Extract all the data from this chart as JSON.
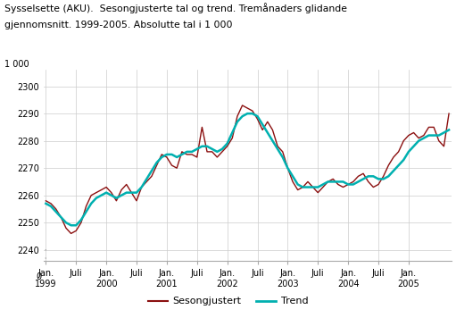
{
  "title_line1": "Sysselsette (AKU).  Sesongjusterte tal og trend. Tremånaders glidande",
  "title_line2": "gjennomsnitt. 1999-2005. Absolutte tal i 1 000",
  "ylabel_top": "1 000",
  "yticks": [
    2240,
    2250,
    2260,
    2270,
    2280,
    2290,
    2300
  ],
  "ymin": 2236,
  "ymax": 2306,
  "xtick_labels": [
    "Jan.\n1999",
    "Juli",
    "Jan.\n2000",
    "Juli",
    "Jan.\n2001",
    "Juli",
    "Jan.\n2002",
    "Juli",
    "Jan.\n2003",
    "Juli",
    "Jan.\n2004",
    "Juli",
    "Jan.\n2005"
  ],
  "legend_sesongjustert": "Sesongjustert",
  "legend_trend": "Trend",
  "color_sesongjustert": "#8B1010",
  "color_trend": "#00B0B0",
  "background_color": "#ffffff",
  "sesongjustert": [
    2258,
    2257,
    2255,
    2252,
    2248,
    2246,
    2247,
    2250,
    2256,
    2260,
    2261,
    2262,
    2263,
    2261,
    2258,
    2262,
    2264,
    2261,
    2258,
    2263,
    2265,
    2267,
    2271,
    2275,
    2274,
    2271,
    2270,
    2276,
    2275,
    2275,
    2274,
    2285,
    2276,
    2276,
    2274,
    2276,
    2278,
    2281,
    2289,
    2293,
    2292,
    2291,
    2288,
    2284,
    2287,
    2284,
    2278,
    2276,
    2270,
    2265,
    2262,
    2263,
    2265,
    2263,
    2261,
    2263,
    2265,
    2266,
    2264,
    2263,
    2264,
    2265,
    2267,
    2268,
    2265,
    2263,
    2264,
    2267,
    2271,
    2274,
    2276,
    2280,
    2282,
    2283,
    2281,
    2282,
    2285,
    2285,
    2280,
    2278,
    2290
  ],
  "trend": [
    2257,
    2256,
    2254,
    2252,
    2250,
    2249,
    2249,
    2251,
    2254,
    2257,
    2259,
    2260,
    2261,
    2260,
    2259,
    2260,
    2261,
    2261,
    2261,
    2263,
    2266,
    2269,
    2272,
    2274,
    2275,
    2275,
    2274,
    2275,
    2276,
    2276,
    2277,
    2278,
    2278,
    2277,
    2276,
    2277,
    2279,
    2283,
    2287,
    2289,
    2290,
    2290,
    2289,
    2286,
    2283,
    2280,
    2277,
    2274,
    2270,
    2267,
    2264,
    2263,
    2263,
    2263,
    2263,
    2264,
    2265,
    2265,
    2265,
    2265,
    2264,
    2264,
    2265,
    2266,
    2267,
    2267,
    2266,
    2266,
    2267,
    2269,
    2271,
    2273,
    2276,
    2278,
    2280,
    2281,
    2282,
    2282,
    2282,
    2283,
    2284
  ]
}
